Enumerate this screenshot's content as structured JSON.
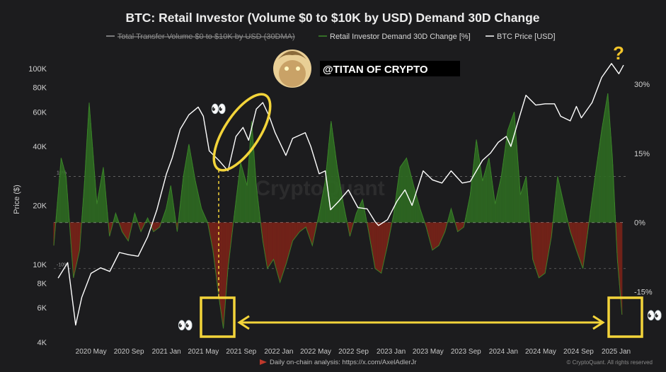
{
  "chart_data": {
    "type": "line",
    "title": "BTC: Retail Investor (Volume $0 to $10K by USD) Demand 30D Change",
    "watermark": "CryptoQuant",
    "handle": "@TITAN OF CRYPTO",
    "footer_left": "Daily on-chain analysis: https://x.com/AxelAdlerJr",
    "footer_right": "© CryptoQuant. All rights reserved",
    "ylabel_left": "Price ($)",
    "legend": [
      {
        "name": "Total Transfer Volume $0 to $10K by USD (30DMA)",
        "color": "#9a9a9a",
        "struck": true
      },
      {
        "name": "Retail Investor Demand 30D Change [%]",
        "color": "#3d8a2a"
      },
      {
        "name": "BTC Price [USD]",
        "color": "#ffffff"
      }
    ],
    "y_left_ticks": [
      {
        "v": 4000,
        "label": "4K"
      },
      {
        "v": 6000,
        "label": "6K"
      },
      {
        "v": 8000,
        "label": "8K"
      },
      {
        "v": 10000,
        "label": "10K"
      },
      {
        "v": 20000,
        "label": "20K"
      },
      {
        "v": 40000,
        "label": "40K"
      },
      {
        "v": 60000,
        "label": "60K"
      },
      {
        "v": 80000,
        "label": "80K"
      },
      {
        "v": 100000,
        "label": "100K"
      }
    ],
    "y_left_range": [
      4000,
      115000
    ],
    "y_left_scale": "log",
    "y_right_ticks": [
      {
        "v": 30,
        "label": "30%"
      },
      {
        "v": 15,
        "label": "15%"
      },
      {
        "v": 0,
        "label": "0%"
      },
      {
        "v": -15,
        "label": "-15%"
      }
    ],
    "y_right_range": [
      -26,
      36
    ],
    "inner_levels": [
      {
        "v": 10,
        "label": "10%"
      },
      {
        "v": -10,
        "label": "-10%"
      }
    ],
    "x_ticks": [
      "2020 May",
      "2020 Sep",
      "2021 Jan",
      "2021 May",
      "2021 Sep",
      "2022 Jan",
      "2022 May",
      "2022 Sep",
      "2023 Jan",
      "2023 May",
      "2023 Sep",
      "2024 Jan",
      "2024 May",
      "2024 Sep",
      "2025 Jan"
    ],
    "btc_price": {
      "x": [
        "2020-01-15",
        "2020-02-15",
        "2020-03-12",
        "2020-04-01",
        "2020-05-01",
        "2020-06-01",
        "2020-07-01",
        "2020-08-01",
        "2020-09-01",
        "2020-10-01",
        "2020-11-01",
        "2020-12-01",
        "2021-01-01",
        "2021-01-20",
        "2021-02-15",
        "2021-03-15",
        "2021-04-14",
        "2021-05-01",
        "2021-05-20",
        "2021-06-20",
        "2021-07-20",
        "2021-08-15",
        "2021-09-07",
        "2021-09-25",
        "2021-10-20",
        "2021-11-10",
        "2021-12-01",
        "2021-12-20",
        "2022-01-24",
        "2022-02-15",
        "2022-03-28",
        "2022-04-15",
        "2022-05-12",
        "2022-06-01",
        "2022-06-18",
        "2022-07-15",
        "2022-08-15",
        "2022-09-15",
        "2022-10-15",
        "2022-11-10",
        "2022-11-21",
        "2022-12-20",
        "2023-01-20",
        "2023-02-15",
        "2023-03-10",
        "2023-04-15",
        "2023-05-15",
        "2023-06-15",
        "2023-07-15",
        "2023-08-20",
        "2023-09-15",
        "2023-10-25",
        "2023-11-20",
        "2023-12-15",
        "2024-01-10",
        "2024-01-25",
        "2024-02-15",
        "2024-03-14",
        "2024-04-15",
        "2024-05-15",
        "2024-06-15",
        "2024-07-05",
        "2024-08-05",
        "2024-08-25",
        "2024-09-10",
        "2024-10-15",
        "2024-11-15",
        "2024-12-17",
        "2025-01-10",
        "2025-01-25"
      ],
      "y": [
        8500,
        10200,
        4900,
        6800,
        9000,
        9600,
        9200,
        11500,
        11200,
        11000,
        13800,
        19000,
        29000,
        35000,
        49000,
        58000,
        63500,
        57000,
        38000,
        34000,
        30000,
        45000,
        50000,
        43000,
        62000,
        67000,
        57000,
        47000,
        36000,
        44000,
        47000,
        40000,
        29000,
        30000,
        19000,
        21000,
        24000,
        19500,
        19200,
        16500,
        15800,
        16900,
        21000,
        24000,
        20000,
        30000,
        27000,
        26000,
        30000,
        26000,
        26500,
        34000,
        37000,
        42000,
        45000,
        40000,
        52000,
        73000,
        65000,
        66000,
        66000,
        57000,
        54000,
        64000,
        56000,
        67000,
        90000,
        106000,
        94000,
        104000
      ]
    },
    "demand_change": {
      "x": [
        "2020-01-01",
        "2020-01-25",
        "2020-02-10",
        "2020-03-05",
        "2020-03-25",
        "2020-04-10",
        "2020-04-25",
        "2020-05-20",
        "2020-06-10",
        "2020-06-30",
        "2020-07-20",
        "2020-08-10",
        "2020-08-30",
        "2020-09-20",
        "2020-10-10",
        "2020-11-01",
        "2020-11-20",
        "2020-12-10",
        "2020-12-31",
        "2021-01-15",
        "2021-02-05",
        "2021-02-25",
        "2021-03-15",
        "2021-04-05",
        "2021-04-25",
        "2021-05-15",
        "2021-06-01",
        "2021-06-20",
        "2021-07-05",
        "2021-07-20",
        "2021-08-10",
        "2021-08-30",
        "2021-09-20",
        "2021-10-05",
        "2021-10-20",
        "2021-11-10",
        "2021-11-25",
        "2021-12-15",
        "2022-01-05",
        "2022-01-25",
        "2022-02-15",
        "2022-03-10",
        "2022-03-30",
        "2022-04-20",
        "2022-05-12",
        "2022-06-01",
        "2022-06-20",
        "2022-07-10",
        "2022-07-30",
        "2022-08-20",
        "2022-09-10",
        "2022-09-30",
        "2022-10-20",
        "2022-11-10",
        "2022-11-30",
        "2022-12-20",
        "2023-01-10",
        "2023-01-30",
        "2023-02-20",
        "2023-03-15",
        "2023-04-05",
        "2023-04-25",
        "2023-05-15",
        "2023-06-05",
        "2023-06-25",
        "2023-07-15",
        "2023-08-05",
        "2023-08-25",
        "2023-09-15",
        "2023-10-05",
        "2023-10-25",
        "2023-11-15",
        "2023-12-05",
        "2023-12-25",
        "2024-01-15",
        "2024-02-05",
        "2024-02-25",
        "2024-03-15",
        "2024-04-05",
        "2024-04-25",
        "2024-05-15",
        "2024-06-05",
        "2024-06-25",
        "2024-07-15",
        "2024-08-05",
        "2024-08-25",
        "2024-09-15",
        "2024-10-05",
        "2024-10-25",
        "2024-11-15",
        "2024-12-05",
        "2024-12-20",
        "2025-01-05",
        "2025-01-20"
      ],
      "y": [
        -5,
        14,
        10,
        -12,
        -6,
        9,
        26,
        4,
        12,
        -3,
        2,
        -2,
        -4,
        2,
        -2,
        1,
        -2,
        -1,
        3,
        8,
        -2,
        10,
        17,
        9,
        3,
        0,
        -6,
        -16,
        -23,
        -10,
        2,
        13,
        8,
        22,
        8,
        -4,
        -10,
        -8,
        -13,
        -9,
        -4,
        -2,
        -1,
        -5,
        2,
        9,
        22,
        12,
        4,
        -3,
        2,
        5,
        -2,
        -10,
        -11,
        -5,
        2,
        12,
        14,
        8,
        3,
        -1,
        -6,
        -5,
        -2,
        3,
        -2,
        -1,
        6,
        18,
        9,
        14,
        4,
        10,
        20,
        24,
        6,
        10,
        -8,
        -12,
        -11,
        -3,
        10,
        4,
        -2,
        -6,
        -10,
        0,
        10,
        20,
        28,
        14,
        -8,
        -20
      ]
    },
    "annotations": {
      "question_mark": "?",
      "eyes": "👀"
    }
  }
}
